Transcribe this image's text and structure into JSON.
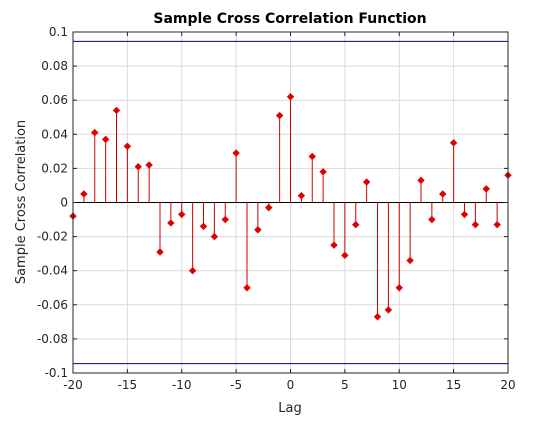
{
  "chart_data": {
    "type": "stem",
    "title": "Sample Cross Correlation Function",
    "xlabel": "Lag",
    "ylabel": "Sample Cross Correlation",
    "xlim": [
      -20,
      20
    ],
    "ylim": [
      -0.1,
      0.1
    ],
    "xticks": [
      -20,
      -15,
      -10,
      -5,
      0,
      5,
      10,
      15,
      20
    ],
    "xtick_labels": [
      "-20",
      "-15",
      "-10",
      "-5",
      "0",
      "5",
      "10",
      "15",
      "20"
    ],
    "yticks": [
      -0.1,
      -0.08,
      -0.06,
      -0.04,
      -0.02,
      0,
      0.02,
      0.04,
      0.06,
      0.08,
      0.1
    ],
    "ytick_labels": [
      "-0.1",
      "-0.08",
      "-0.06",
      "-0.04",
      "-0.02",
      "0",
      "0.02",
      "0.04",
      "0.06",
      "0.08",
      "0.1"
    ],
    "grid": true,
    "confidence_bounds": [
      0.0945,
      -0.0945
    ],
    "x": [
      -20,
      -19,
      -18,
      -17,
      -16,
      -15,
      -14,
      -13,
      -12,
      -11,
      -10,
      -9,
      -8,
      -7,
      -6,
      -5,
      -4,
      -3,
      -2,
      -1,
      0,
      1,
      2,
      3,
      4,
      5,
      6,
      7,
      8,
      9,
      10,
      11,
      12,
      13,
      14,
      15,
      16,
      17,
      18,
      19,
      20
    ],
    "y": [
      -0.008,
      0.005,
      0.041,
      0.037,
      0.054,
      0.033,
      0.021,
      0.022,
      -0.029,
      -0.012,
      -0.007,
      -0.04,
      -0.014,
      -0.02,
      -0.01,
      0.029,
      -0.05,
      -0.016,
      -0.003,
      0.051,
      0.062,
      0.004,
      0.027,
      0.018,
      -0.025,
      -0.031,
      -0.013,
      0.012,
      -0.067,
      -0.063,
      -0.05,
      -0.034,
      0.013,
      -0.01,
      0.005,
      0.035,
      -0.007,
      -0.013,
      0.008,
      -0.013,
      0.016
    ],
    "colors": {
      "stem": "#d00000",
      "marker": "#e00000",
      "bounds": "#000080"
    }
  }
}
